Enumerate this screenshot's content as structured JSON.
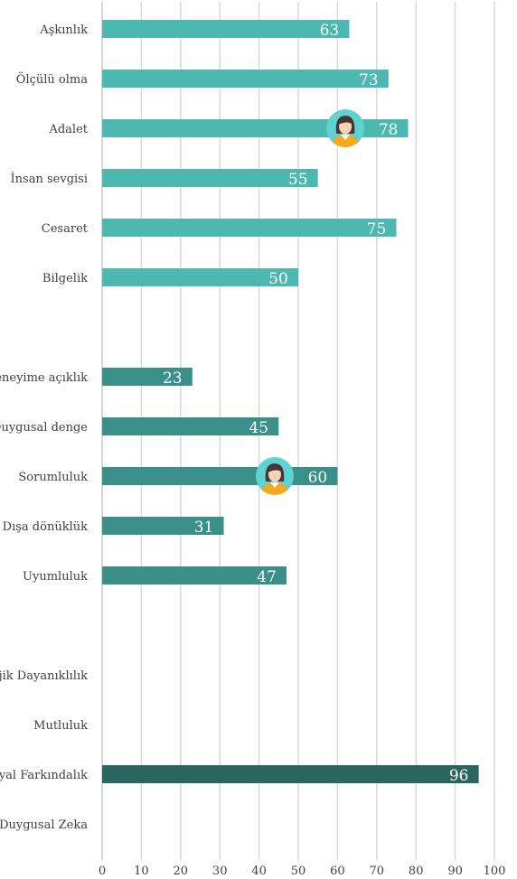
{
  "chart_data": {
    "type": "bar",
    "orientation": "horizontal",
    "categories": [
      "Aşkınlık",
      "Ölçülü olma",
      "Adalet",
      "İnsan sevgisi",
      "Cesaret",
      "Bilgelik",
      "",
      "Deneyime açıklık",
      "Duygusal denge",
      "Sorumluluk",
      "Dışa dönüklük",
      "Uyumluluk",
      "",
      "Psikolojik Dayanıklılık",
      "Mutluluk",
      "Sosyal Farkındalık",
      "Duygusal Zeka"
    ],
    "values": [
      63,
      73,
      78,
      55,
      75,
      50,
      null,
      23,
      45,
      60,
      31,
      47,
      null,
      null,
      null,
      96,
      null
    ],
    "bar_colors": [
      "#4db8b0",
      "#4db8b0",
      "#4db8b0",
      "#4db8b0",
      "#4db8b0",
      "#4db8b0",
      null,
      "#3a8f89",
      "#3a8f89",
      "#3a8f89",
      "#3a8f89",
      "#3a8f89",
      null,
      "#2a6660",
      "#2a6660",
      "#2a6660",
      "#2a6660"
    ],
    "markers": [
      {
        "category_index": 2,
        "value": 62,
        "icon": "woman-avatar-icon"
      },
      {
        "category_index": 9,
        "value": 44,
        "icon": "woman-avatar-icon"
      }
    ],
    "xlim": [
      0,
      100
    ],
    "xticks": [
      0,
      10,
      20,
      30,
      40,
      50,
      60,
      70,
      80,
      90,
      100
    ],
    "title": "",
    "xlabel": "",
    "ylabel": "",
    "grid": "vertical",
    "legend": "none"
  }
}
